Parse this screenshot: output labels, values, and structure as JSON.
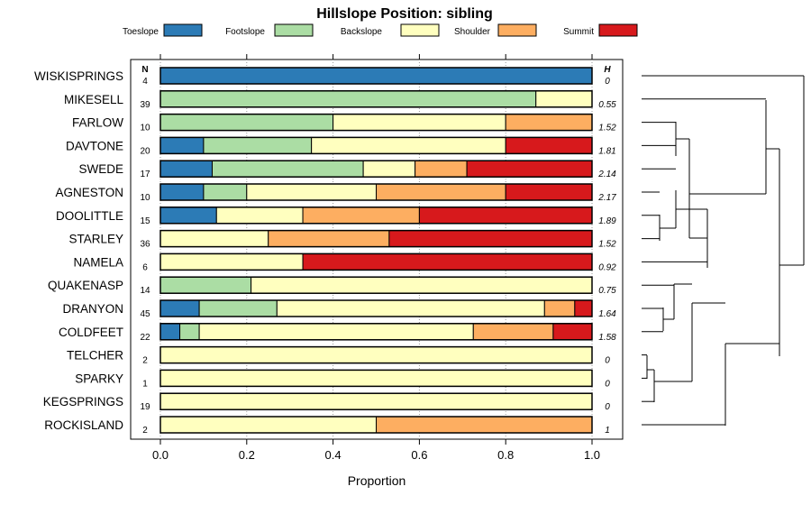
{
  "chart_data": {
    "type": "bar",
    "stacked": true,
    "orientation": "horizontal",
    "title": "Hillslope Position: sibling",
    "xlabel": "Proportion",
    "xlim": [
      0,
      1
    ],
    "xticks": [
      "0.0",
      "0.2",
      "0.4",
      "0.6",
      "0.8",
      "1.0"
    ],
    "xtick_values": [
      0,
      0.2,
      0.4,
      0.6,
      0.8,
      1.0
    ],
    "n_header": "N",
    "h_header": "H",
    "legend_position": "top",
    "series": [
      {
        "name": "Toeslope",
        "color": "#2c7bb6"
      },
      {
        "name": "Footslope",
        "color": "#abdda4"
      },
      {
        "name": "Backslope",
        "color": "#ffffbf"
      },
      {
        "name": "Shoulder",
        "color": "#fdae61"
      },
      {
        "name": "Summit",
        "color": "#d7191c"
      }
    ],
    "rows": [
      {
        "name": "WISKISPRINGS",
        "n": "4",
        "h": "0",
        "values": [
          1.0,
          0,
          0,
          0,
          0
        ]
      },
      {
        "name": "MIKESELL",
        "n": "39",
        "h": "0.55",
        "values": [
          0,
          0.87,
          0.13,
          0,
          0
        ]
      },
      {
        "name": "FARLOW",
        "n": "10",
        "h": "1.52",
        "values": [
          0,
          0.4,
          0.4,
          0.2,
          0
        ]
      },
      {
        "name": "DAVTONE",
        "n": "20",
        "h": "1.81",
        "values": [
          0.1,
          0.25,
          0.45,
          0,
          0.2
        ]
      },
      {
        "name": "SWEDE",
        "n": "17",
        "h": "2.14",
        "values": [
          0.12,
          0.35,
          0.12,
          0.12,
          0.29
        ]
      },
      {
        "name": "AGNESTON",
        "n": "10",
        "h": "2.17",
        "values": [
          0.1,
          0.1,
          0.3,
          0.3,
          0.2
        ]
      },
      {
        "name": "DOOLITTLE",
        "n": "15",
        "h": "1.89",
        "values": [
          0.13,
          0,
          0.2,
          0.27,
          0.4
        ]
      },
      {
        "name": "STARLEY",
        "n": "36",
        "h": "1.52",
        "values": [
          0,
          0,
          0.25,
          0.28,
          0.47
        ]
      },
      {
        "name": "NAMELA",
        "n": "6",
        "h": "0.92",
        "values": [
          0,
          0,
          0.33,
          0,
          0.67
        ]
      },
      {
        "name": "QUAKENASP",
        "n": "14",
        "h": "0.75",
        "values": [
          0,
          0.21,
          0.79,
          0,
          0
        ]
      },
      {
        "name": "DRANYON",
        "n": "45",
        "h": "1.64",
        "values": [
          0.09,
          0.18,
          0.62,
          0.07,
          0.04
        ]
      },
      {
        "name": "COLDFEET",
        "n": "22",
        "h": "1.58",
        "values": [
          0.045,
          0.045,
          0.635,
          0.185,
          0.09
        ]
      },
      {
        "name": "TELCHER",
        "n": "2",
        "h": "0",
        "values": [
          0,
          0,
          1.0,
          0,
          0
        ]
      },
      {
        "name": "SPARKY",
        "n": "1",
        "h": "0",
        "values": [
          0,
          0,
          1.0,
          0,
          0
        ]
      },
      {
        "name": "KEGSPRINGS",
        "n": "19",
        "h": "0",
        "values": [
          0,
          0,
          1.0,
          0,
          0
        ]
      },
      {
        "name": "ROCKISLAND",
        "n": "2",
        "h": "1",
        "values": [
          0,
          0,
          0.5,
          0.5,
          0
        ]
      }
    ],
    "dendrogram": {
      "merges": [
        [
          0,
          1
        ],
        [
          2,
          3
        ],
        [
          4,
          5
        ],
        [
          6,
          7
        ],
        [
          8,
          9
        ],
        [
          10,
          11
        ],
        [
          12,
          13
        ],
        [
          14,
          15
        ]
      ]
    }
  }
}
